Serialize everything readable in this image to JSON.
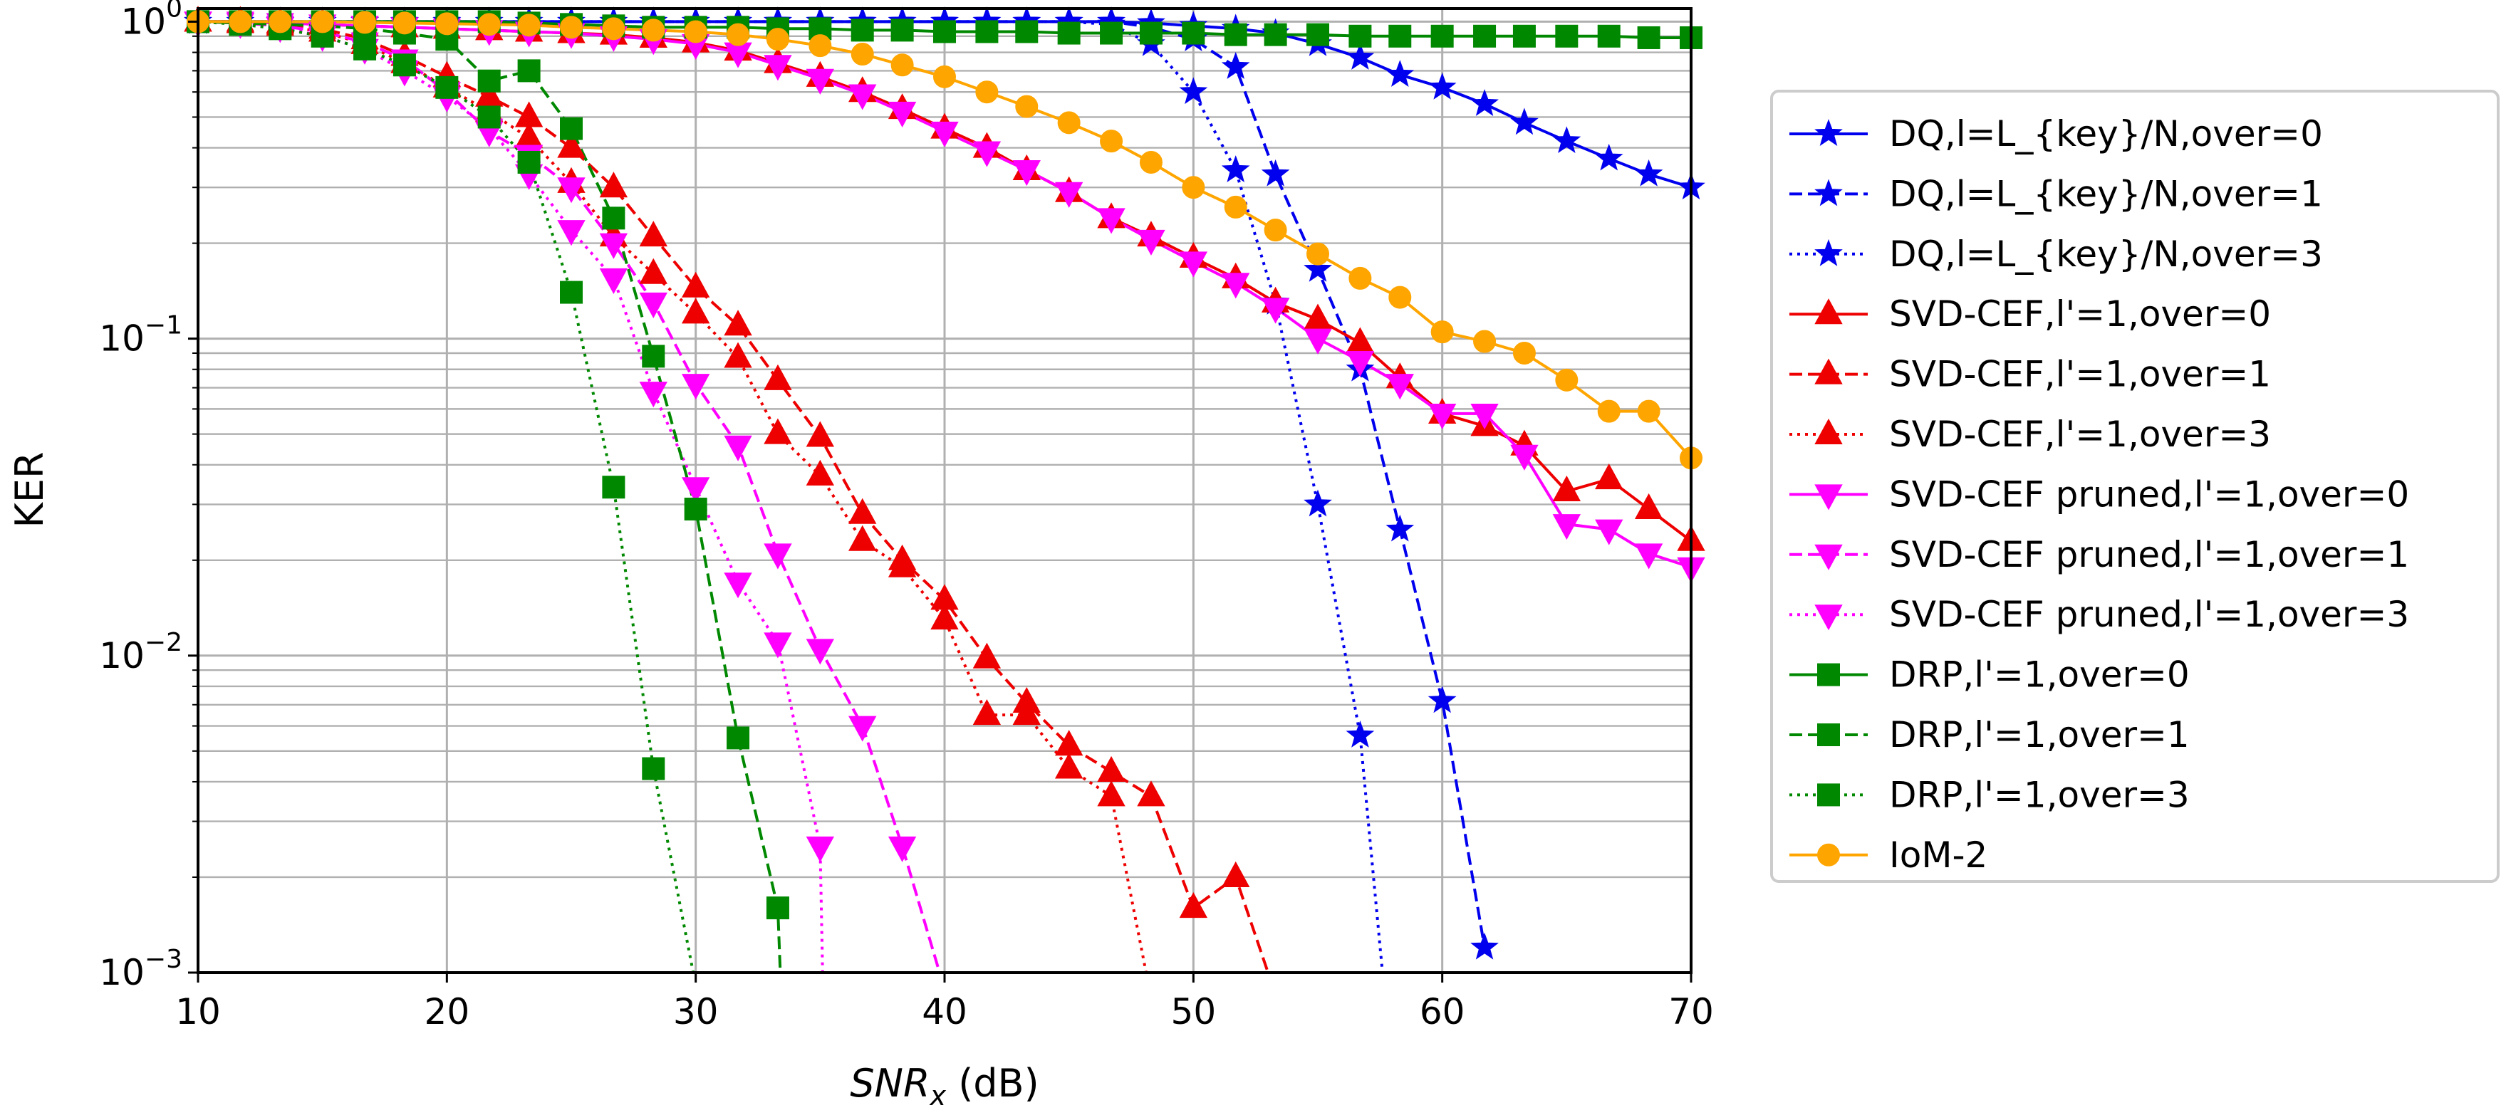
{
  "chart_data": {
    "type": "line",
    "xlabel_main": "SNR",
    "xlabel_sub": "x",
    "xlabel_unit": " (dB)",
    "ylabel": "KER",
    "xlim": [
      10,
      70
    ],
    "ylim": [
      0.001,
      1.1
    ],
    "yscale": "log",
    "grid": true,
    "legend_position": "outside-right",
    "xticks": [
      10,
      20,
      30,
      40,
      50,
      60,
      70
    ],
    "yticks": [
      {
        "value": 1,
        "exp": "0"
      },
      {
        "value": 0.1,
        "exp": "−1"
      },
      {
        "value": 0.01,
        "exp": "−2"
      },
      {
        "value": 0.001,
        "exp": "−3"
      }
    ],
    "series": [
      {
        "name": "DQ,l=L_{key}/N,over=0",
        "color": "#0000ee",
        "dash": "solid",
        "marker": "star",
        "x": [
          10,
          11.7,
          13.3,
          15,
          16.7,
          18.3,
          20,
          21.7,
          23.3,
          25,
          26.7,
          28.3,
          30,
          31.7,
          33.3,
          35,
          36.7,
          38.3,
          40,
          41.7,
          43.3,
          45,
          46.7,
          48.3,
          50,
          51.7,
          53.3,
          55,
          56.7,
          58.3,
          60,
          61.7,
          63.3,
          65,
          66.7,
          68.3,
          70
        ],
        "y": [
          1,
          1,
          1,
          1,
          1,
          1,
          1,
          1,
          1,
          1,
          1,
          1,
          1,
          1,
          1,
          1,
          1,
          1,
          1,
          1,
          1,
          1,
          1,
          0.99,
          0.97,
          0.95,
          0.92,
          0.85,
          0.77,
          0.68,
          0.62,
          0.55,
          0.48,
          0.42,
          0.37,
          0.33,
          0.3
        ]
      },
      {
        "name": "DQ,l=L_{key}/N,over=1",
        "color": "#0000ee",
        "dash": "dashed",
        "marker": "star",
        "x": [
          10,
          11.7,
          13.3,
          15,
          16.7,
          18.3,
          20,
          21.7,
          23.3,
          25,
          26.7,
          28.3,
          30,
          31.7,
          33.3,
          35,
          36.7,
          38.3,
          40,
          41.7,
          43.3,
          45,
          46.7,
          48.3,
          50,
          51.7,
          53.3,
          55,
          56.7,
          58.3,
          60,
          61.7
        ],
        "y": [
          1,
          1,
          1,
          1,
          1,
          1,
          1,
          1,
          1,
          1,
          1,
          1,
          1,
          1,
          1,
          1,
          1,
          1,
          1,
          1,
          1,
          1,
          1,
          0.96,
          0.88,
          0.72,
          0.33,
          0.165,
          0.08,
          0.025,
          0.0072,
          0.0012
        ]
      },
      {
        "name": "DQ,l=L_{key}/N,over=3",
        "color": "#0000ee",
        "dash": "dotted",
        "marker": "star",
        "x": [
          10,
          11.7,
          13.3,
          15,
          16.7,
          18.3,
          20,
          21.7,
          23.3,
          25,
          26.7,
          28.3,
          30,
          31.7,
          33.3,
          35,
          36.7,
          38.3,
          40,
          41.7,
          43.3,
          45,
          46.7,
          48.3,
          50,
          51.7,
          53.3,
          55,
          56.7,
          57.6
        ],
        "y": [
          1,
          1,
          1,
          1,
          1,
          1,
          1,
          1,
          1,
          1,
          1,
          1,
          1,
          1,
          1,
          1,
          1,
          1,
          1,
          1,
          1,
          1,
          0.98,
          0.85,
          0.6,
          0.34,
          0.13,
          0.03,
          0.0056,
          0.001
        ]
      },
      {
        "name": "SVD-CEF,l'=1,over=0",
        "color": "#ee0000",
        "dash": "solid",
        "marker": "triangle-up",
        "x": [
          10,
          11.7,
          13.3,
          15,
          16.7,
          18.3,
          20,
          21.7,
          23.3,
          25,
          26.7,
          28.3,
          30,
          31.7,
          33.3,
          35,
          36.7,
          38.3,
          40,
          41.7,
          43.3,
          45,
          46.7,
          48.3,
          50,
          51.7,
          53.3,
          55,
          56.7,
          58.3,
          60,
          61.7,
          63.3,
          65,
          66.7,
          68.3,
          70
        ],
        "y": [
          1,
          1,
          0.99,
          0.98,
          0.97,
          0.96,
          0.95,
          0.94,
          0.93,
          0.92,
          0.91,
          0.89,
          0.86,
          0.81,
          0.74,
          0.67,
          0.6,
          0.53,
          0.46,
          0.4,
          0.34,
          0.29,
          0.24,
          0.21,
          0.18,
          0.155,
          0.13,
          0.115,
          0.097,
          0.075,
          0.058,
          0.053,
          0.046,
          0.033,
          0.036,
          0.029,
          0.023
        ]
      },
      {
        "name": "SVD-CEF,l'=1,over=1",
        "color": "#ee0000",
        "dash": "dashed",
        "marker": "triangle-up",
        "x": [
          10,
          11.7,
          13.3,
          15,
          16.7,
          18.3,
          20,
          21.7,
          23.3,
          25,
          26.7,
          28.3,
          30,
          31.7,
          33.3,
          35,
          36.7,
          38.3,
          40,
          41.7,
          43.3,
          45,
          46.7,
          48.3,
          50,
          51.7,
          53
        ],
        "y": [
          1,
          0.99,
          0.98,
          0.95,
          0.88,
          0.78,
          0.67,
          0.58,
          0.5,
          0.4,
          0.3,
          0.21,
          0.145,
          0.11,
          0.074,
          0.049,
          0.028,
          0.02,
          0.015,
          0.0098,
          0.0071,
          0.0052,
          0.0043,
          0.0036,
          0.0016,
          0.002,
          0.001
        ]
      },
      {
        "name": "SVD-CEF,l'=1,over=3",
        "color": "#ee0000",
        "dash": "dotted",
        "marker": "triangle-up",
        "x": [
          10,
          11.7,
          13.3,
          15,
          16.7,
          18.3,
          20,
          21.7,
          23.3,
          25,
          26.7,
          28.3,
          30,
          31.7,
          33.3,
          35,
          36.7,
          38.3,
          40,
          41.7,
          43.3,
          45,
          46.7,
          48.1
        ],
        "y": [
          1,
          0.99,
          0.97,
          0.93,
          0.85,
          0.74,
          0.62,
          0.52,
          0.43,
          0.31,
          0.21,
          0.16,
          0.12,
          0.087,
          0.05,
          0.037,
          0.023,
          0.019,
          0.013,
          0.0065,
          0.0065,
          0.0044,
          0.0036,
          0.001
        ]
      },
      {
        "name": "SVD-CEF pruned,l'=1,over=0",
        "color": "#ff00ff",
        "dash": "solid",
        "marker": "triangle-down",
        "x": [
          10,
          11.7,
          13.3,
          15,
          16.7,
          18.3,
          20,
          21.7,
          23.3,
          25,
          26.7,
          28.3,
          30,
          31.7,
          33.3,
          35,
          36.7,
          38.3,
          40,
          41.7,
          43.3,
          45,
          46.7,
          48.3,
          50,
          51.7,
          53.3,
          55,
          56.7,
          58.3,
          60,
          61.7,
          63.3,
          65,
          66.7,
          68.3,
          70
        ],
        "y": [
          1,
          1,
          0.99,
          0.98,
          0.97,
          0.96,
          0.95,
          0.94,
          0.93,
          0.92,
          0.9,
          0.88,
          0.85,
          0.8,
          0.73,
          0.66,
          0.59,
          0.52,
          0.45,
          0.39,
          0.34,
          0.29,
          0.24,
          0.205,
          0.175,
          0.15,
          0.125,
          0.1,
          0.085,
          0.072,
          0.058,
          0.058,
          0.043,
          0.026,
          0.025,
          0.021,
          0.019
        ]
      },
      {
        "name": "SVD-CEF pruned,l'=1,over=1",
        "color": "#ff00ff",
        "dash": "dashed",
        "marker": "triangle-down",
        "x": [
          10,
          11.7,
          13.3,
          15,
          16.7,
          18.3,
          20,
          21.7,
          23.3,
          25,
          26.7,
          28.3,
          30,
          31.7,
          33.3,
          35,
          36.7,
          38.3,
          39.8
        ],
        "y": [
          1,
          0.99,
          0.97,
          0.93,
          0.86,
          0.76,
          0.6,
          0.45,
          0.38,
          0.3,
          0.2,
          0.13,
          0.072,
          0.046,
          0.021,
          0.0105,
          0.006,
          0.0025,
          0.001
        ]
      },
      {
        "name": "SVD-CEF pruned,l'=1,over=3",
        "color": "#ff00ff",
        "dash": "dotted",
        "marker": "triangle-down",
        "x": [
          10,
          11.7,
          13.3,
          15,
          16.7,
          18.3,
          20,
          21.7,
          23.3,
          25,
          26.7,
          28.3,
          30,
          31.7,
          33.3,
          35,
          35.1
        ],
        "y": [
          1,
          0.99,
          0.96,
          0.9,
          0.82,
          0.7,
          0.58,
          0.46,
          0.33,
          0.22,
          0.155,
          0.068,
          0.034,
          0.017,
          0.011,
          0.0025,
          0.001
        ]
      },
      {
        "name": "DRP,l'=1,over=0",
        "color": "#008800",
        "dash": "solid",
        "marker": "square",
        "x": [
          10,
          11.7,
          13.3,
          15,
          16.7,
          18.3,
          20,
          21.7,
          23.3,
          25,
          26.7,
          28.3,
          30,
          31.7,
          33.3,
          35,
          36.7,
          38.3,
          40,
          41.7,
          43.3,
          45,
          46.7,
          48.3,
          50,
          51.7,
          53.3,
          55,
          56.7,
          58.3,
          60,
          61.7,
          63.3,
          65,
          66.7,
          68.3,
          70
        ],
        "y": [
          1,
          1,
          1,
          1,
          1,
          1,
          1,
          1,
          0.99,
          0.98,
          0.97,
          0.96,
          0.96,
          0.96,
          0.95,
          0.95,
          0.94,
          0.94,
          0.93,
          0.93,
          0.93,
          0.92,
          0.92,
          0.92,
          0.92,
          0.91,
          0.91,
          0.91,
          0.9,
          0.9,
          0.9,
          0.9,
          0.9,
          0.9,
          0.9,
          0.89,
          0.89
        ]
      },
      {
        "name": "DRP,l'=1,over=1",
        "color": "#008800",
        "dash": "dashed",
        "marker": "square",
        "x": [
          10,
          11.7,
          13.3,
          15,
          16.7,
          18.3,
          20,
          21.7,
          23.3,
          25,
          26.7,
          28.3,
          30,
          31.7,
          33.3,
          33.4
        ],
        "y": [
          1,
          0.99,
          0.98,
          0.97,
          0.95,
          0.92,
          0.88,
          0.65,
          0.7,
          0.46,
          0.24,
          0.088,
          0.029,
          0.0055,
          0.0016,
          0.001
        ]
      },
      {
        "name": "DRP,l'=1,over=3",
        "color": "#008800",
        "dash": "dotted",
        "marker": "square",
        "x": [
          10,
          11.7,
          13.3,
          15,
          16.7,
          18.3,
          20,
          21.7,
          23.3,
          25,
          26.7,
          28.3,
          29.9
        ],
        "y": [
          1,
          0.98,
          0.95,
          0.9,
          0.82,
          0.73,
          0.62,
          0.5,
          0.36,
          0.14,
          0.034,
          0.0044,
          0.001
        ]
      },
      {
        "name": "IoM-2",
        "color": "#ffa500",
        "dash": "solid",
        "marker": "circle",
        "x": [
          10,
          11.7,
          13.3,
          15,
          16.7,
          18.3,
          20,
          21.7,
          23.3,
          25,
          26.7,
          28.3,
          30,
          31.7,
          33.3,
          35,
          36.7,
          38.3,
          40,
          41.7,
          43.3,
          45,
          46.7,
          48.3,
          50,
          51.7,
          53.3,
          55,
          56.7,
          58.3,
          60,
          61.7,
          63.3,
          65,
          66.7,
          68.3,
          70
        ],
        "y": [
          1,
          1,
          1,
          1,
          0.995,
          0.99,
          0.985,
          0.98,
          0.975,
          0.96,
          0.95,
          0.94,
          0.93,
          0.91,
          0.88,
          0.84,
          0.79,
          0.73,
          0.67,
          0.6,
          0.54,
          0.48,
          0.42,
          0.36,
          0.3,
          0.26,
          0.22,
          0.185,
          0.155,
          0.135,
          0.105,
          0.098,
          0.09,
          0.074,
          0.059,
          0.059,
          0.042
        ]
      }
    ]
  }
}
